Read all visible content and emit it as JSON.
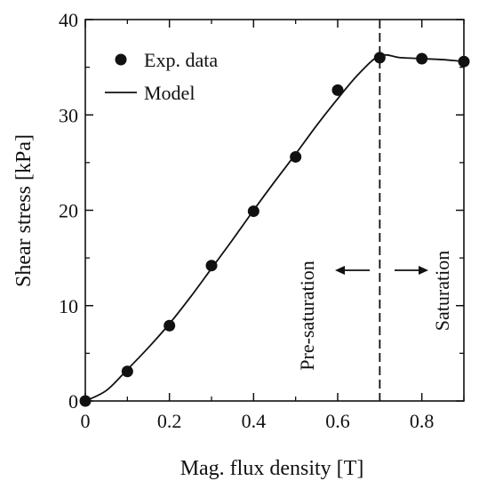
{
  "chart_data": {
    "type": "scatter",
    "xlabel": "Mag. flux density [T]",
    "ylabel": "Shear stress [kPa]",
    "xlim": [
      0,
      0.9
    ],
    "ylim": [
      0,
      40
    ],
    "xticks": [
      "0",
      "0.2",
      "0.4",
      "0.6",
      "0.8"
    ],
    "xtick_values": [
      0,
      0.2,
      0.4,
      0.6,
      0.8
    ],
    "xminor_values": [
      0.1,
      0.3,
      0.5,
      0.7,
      0.9
    ],
    "yticks": [
      "0",
      "10",
      "20",
      "30",
      "40"
    ],
    "ytick_values": [
      0,
      10,
      20,
      30,
      40
    ],
    "yminor_values": [
      5,
      15,
      25,
      35
    ],
    "grid": false,
    "legend_position": "top-left",
    "series": [
      {
        "name": "Exp. data",
        "kind": "markers",
        "x": [
          0,
          0.1,
          0.2,
          0.3,
          0.4,
          0.5,
          0.6,
          0.7,
          0.8,
          0.9
        ],
        "y": [
          0,
          3.1,
          7.9,
          14.2,
          19.9,
          25.6,
          32.6,
          36.0,
          35.9,
          35.6
        ]
      },
      {
        "name": "Model",
        "kind": "line",
        "x": [
          0,
          0.05,
          0.1,
          0.15,
          0.2,
          0.25,
          0.3,
          0.35,
          0.4,
          0.45,
          0.5,
          0.55,
          0.6,
          0.65,
          0.7,
          0.75,
          0.8,
          0.85,
          0.9
        ],
        "y": [
          0,
          1.1,
          3.3,
          5.6,
          8.1,
          10.9,
          13.9,
          16.9,
          20.0,
          23.0,
          25.9,
          28.9,
          31.7,
          34.3,
          36.2,
          36.0,
          35.9,
          35.8,
          35.6
        ]
      }
    ],
    "vline": {
      "x": 0.7,
      "style": "dashed"
    },
    "annotations": [
      {
        "text": "Pre-saturation",
        "arrow": "left"
      },
      {
        "text": "Saturation",
        "arrow": "right"
      }
    ]
  }
}
